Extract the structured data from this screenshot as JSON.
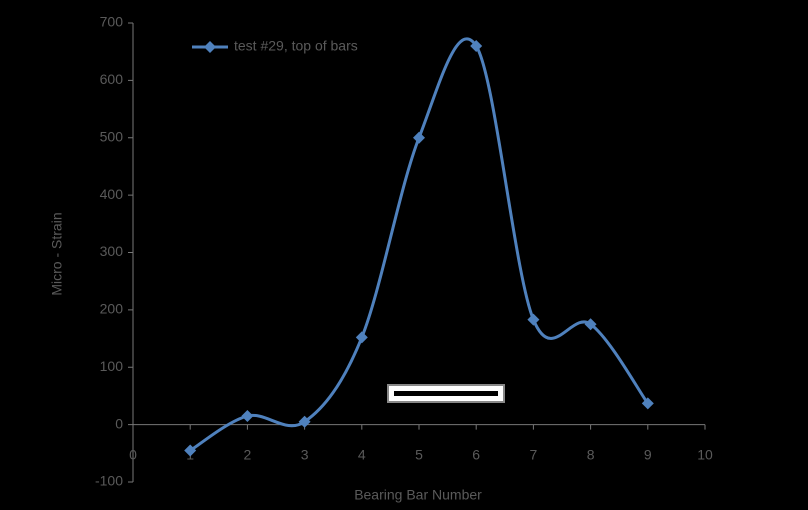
{
  "chart_data": {
    "type": "line",
    "x": [
      1,
      2,
      3,
      4,
      5,
      6,
      7,
      8,
      9
    ],
    "series": [
      {
        "name": "test #29, top of bars",
        "color": "#4f81bd",
        "values": [
          -45,
          15,
          5,
          152,
          500,
          660,
          183,
          175,
          37
        ]
      }
    ],
    "xlim": [
      0,
      10
    ],
    "xticks": [
      0,
      1,
      2,
      3,
      4,
      5,
      6,
      7,
      8,
      9,
      10
    ],
    "ylim": [
      -100,
      700
    ],
    "yticks": [
      -100,
      0,
      100,
      200,
      300,
      400,
      500,
      600,
      700
    ],
    "xlabel": "Bearing Bar Number",
    "ylabel": "Micro - Strain",
    "smooth": true,
    "legend": "top-left"
  }
}
